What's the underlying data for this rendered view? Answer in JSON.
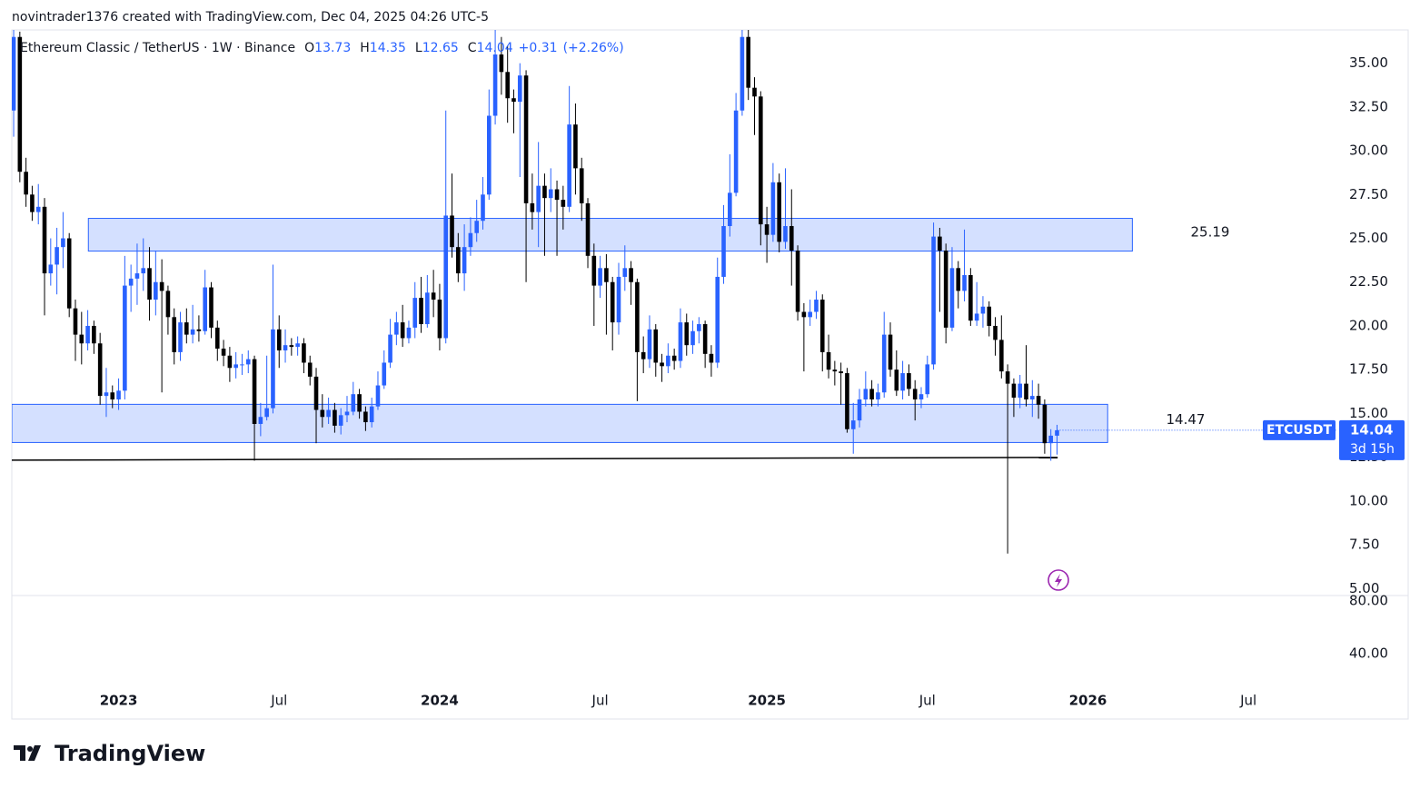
{
  "header": {
    "text": "novintrader1376 created with TradingView.com, Dec 04, 2025 04:26 UTC-5"
  },
  "chart_data": {
    "type": "candlestick",
    "title": "Ethereum Classic / TetherUS · 1W · Binance",
    "legend_labels": [
      "O",
      "H",
      "L",
      "C"
    ],
    "change": {
      "value": 0.31,
      "label": "+0.31"
    },
    "change_percent": {
      "value": 2.26,
      "label": "(+2.26%)"
    },
    "countdown": "3d 15h",
    "x": [
      0,
      1,
      2,
      3,
      4,
      5,
      6,
      7,
      8,
      9,
      10,
      11,
      12,
      13,
      14,
      15,
      16,
      17,
      18,
      19,
      20,
      21,
      22,
      23,
      24,
      25,
      26,
      27,
      28,
      29,
      30,
      31,
      32,
      33,
      34,
      35,
      36,
      37,
      38,
      39,
      40,
      41,
      42,
      43,
      44,
      45,
      46,
      47,
      48,
      49,
      50,
      51,
      52,
      53,
      54,
      55,
      56,
      57,
      58,
      59,
      60,
      61,
      62,
      63,
      64,
      65,
      66,
      67,
      68,
      69,
      70,
      71,
      72,
      73,
      74,
      75,
      76,
      77,
      78,
      79,
      80,
      81,
      82,
      83,
      84,
      85,
      86,
      87,
      88,
      89,
      90,
      91,
      92,
      93,
      94,
      95,
      96,
      97,
      98,
      99,
      100,
      101,
      102,
      103,
      104,
      105,
      106,
      107,
      108,
      109,
      110,
      111,
      112,
      113,
      114,
      115,
      116,
      117,
      118,
      119,
      120,
      121,
      122,
      123,
      124,
      125,
      126,
      127,
      128,
      129,
      130,
      131,
      132,
      133,
      134,
      135,
      136,
      137,
      138,
      139,
      140,
      141,
      142,
      143,
      144,
      145,
      146,
      147,
      148,
      149,
      150,
      151,
      152,
      153,
      154,
      155,
      156,
      157,
      158,
      159,
      160,
      161,
      162,
      163,
      164,
      165,
      166,
      167,
      168,
      169
    ],
    "series": [
      {
        "name": "ETCUSDT",
        "up_color": "#2962ff",
        "down_color": "#000000",
        "open": [
          32.3,
          36.5,
          28.8,
          27.5,
          26.5,
          26.8,
          23,
          23.5,
          24.5,
          25,
          21,
          19.5,
          19,
          20,
          19,
          16,
          16.2,
          15.8,
          16.3,
          22.3,
          22.7,
          23,
          23.3,
          21.5,
          22.5,
          22,
          20.5,
          18.5,
          20.2,
          19.5,
          19.8,
          19.7,
          22.2,
          19.9,
          18.7,
          18.3,
          17.6,
          17.8,
          17.8,
          18.1,
          14.4,
          14.8,
          15.3,
          19.8,
          18.6,
          18.9,
          18.8,
          19,
          17.9,
          17.1,
          15.2,
          14.8,
          15.2,
          14.3,
          14.9,
          15.1,
          16.1,
          15.1,
          14.5,
          15.4,
          16.6,
          17.9,
          19.5,
          20.2,
          19.3,
          19.9,
          21.6,
          20.1,
          21.9,
          21.5,
          19.3,
          26.3,
          24.5,
          23,
          24.5,
          25.3,
          26,
          27.5,
          32,
          35.5,
          34.5,
          33,
          32.8,
          34.3,
          27,
          26.5,
          28,
          27.3,
          27.8,
          27.2,
          26.8,
          31.5,
          29,
          27,
          24,
          22.3,
          23.3,
          22.5,
          20.2,
          22.8,
          23.3,
          22.5,
          18.5,
          18.1,
          19.8,
          17.9,
          17.7,
          18.3,
          18,
          20.2,
          18.9,
          19.7,
          20.1,
          18.4,
          17.9,
          22.8,
          25.7,
          27.6,
          32.3,
          36.5,
          33.6,
          33.1,
          25.8,
          25.2,
          28.2,
          24.8,
          25.7,
          24.3,
          20.8,
          20.5,
          20.8,
          21.5,
          18.5,
          17.5,
          17.4,
          17.3,
          14.1,
          14.6,
          15.8,
          16.4,
          15.8,
          16.2,
          19.5,
          17.5,
          16.3,
          17.3,
          16.4,
          15.8,
          16.1,
          17.8,
          25.1,
          24.3,
          19.9,
          23.3,
          22,
          22.9,
          20.3,
          20.7,
          21.1,
          20,
          19.2,
          17.4,
          16.7,
          15.9,
          16.7,
          15.8,
          16,
          15.5,
          13.3,
          13.73
        ],
        "high": [
          37.5,
          36.8,
          29.6,
          28,
          28.1,
          27.3,
          25,
          25.6,
          26.5,
          25.3,
          21.5,
          20.8,
          20.9,
          20.3,
          19.6,
          17.6,
          16.6,
          17,
          24,
          23.5,
          24.7,
          25,
          24.5,
          24.3,
          23.8,
          22.3,
          21,
          20.8,
          21,
          21.2,
          20.6,
          23.2,
          22.5,
          20.3,
          19.2,
          18.8,
          18.5,
          18.4,
          18.6,
          18.3,
          15.6,
          18.3,
          23.5,
          20.6,
          19.8,
          19.3,
          19.4,
          19.3,
          18.3,
          17.6,
          16.1,
          15.9,
          15.6,
          15.3,
          16,
          16.8,
          16.4,
          15.4,
          15.9,
          17.4,
          18.6,
          20.4,
          20.8,
          21.2,
          20.3,
          22.5,
          22.8,
          22.9,
          23.2,
          22.4,
          32.3,
          28.7,
          25.3,
          25.8,
          26.2,
          27.2,
          28.5,
          33.5,
          37.2,
          36.5,
          36,
          33.5,
          35,
          34.6,
          28.7,
          30.5,
          28.7,
          29,
          28.3,
          28,
          33.7,
          32.7,
          29.6,
          27.3,
          24.7,
          24,
          24.1,
          22.8,
          23.6,
          24.6,
          23.7,
          22.7,
          19.4,
          20.6,
          20.1,
          18.4,
          19,
          18.7,
          21,
          20.7,
          20.3,
          20.5,
          20.3,
          18.9,
          23.9,
          26.9,
          29.8,
          33.3,
          37.3,
          37,
          34.2,
          33.4,
          26.8,
          29.3,
          28.7,
          29,
          27.8,
          24.6,
          21.3,
          21.5,
          22,
          21.8,
          19.5,
          18,
          17.9,
          17.6,
          15.6,
          16.4,
          17.4,
          16.9,
          16.7,
          20.8,
          20.2,
          18.6,
          18,
          17.8,
          16.9,
          16.5,
          18.3,
          25.9,
          25.6,
          24.7,
          24.5,
          23.7,
          25.5,
          23.3,
          22.5,
          21.7,
          21.4,
          20.5,
          20.6,
          17.8,
          17,
          17.2,
          18.9,
          16.9,
          16.7,
          15.8,
          14.1,
          14.35
        ],
        "low": [
          30.8,
          28.2,
          26.8,
          26,
          25.8,
          20.6,
          22.3,
          21.8,
          23.3,
          20.5,
          18,
          17.8,
          18.6,
          18.4,
          15.5,
          14.8,
          15.3,
          15.2,
          15.8,
          20.8,
          21.2,
          22,
          20.3,
          20.6,
          16.2,
          19.5,
          17.8,
          18,
          19,
          19,
          19.1,
          19.5,
          19.3,
          18,
          17.7,
          16.8,
          17,
          17.2,
          17.3,
          12.3,
          13.7,
          14.6,
          15,
          17.6,
          17.9,
          18.3,
          18.3,
          17.3,
          16.6,
          13.3,
          14.2,
          14.4,
          13.9,
          13.8,
          14.5,
          14.9,
          14.7,
          14,
          14.2,
          15.2,
          16.4,
          17.6,
          18.9,
          18.8,
          19,
          19.3,
          19.6,
          19.9,
          20.5,
          18.6,
          19,
          23.9,
          22.5,
          22,
          24,
          24.8,
          25.5,
          27.2,
          31.5,
          33.2,
          31.6,
          31,
          28.5,
          22.5,
          25.5,
          24.5,
          24,
          26.5,
          24,
          25.5,
          26.5,
          27.5,
          26,
          23.3,
          20,
          21.6,
          19.5,
          18.6,
          19.5,
          22,
          21.2,
          15.7,
          17.3,
          17.6,
          17.1,
          16.8,
          17.3,
          17.5,
          17.6,
          18.3,
          18.4,
          19,
          17.6,
          17.1,
          17.6,
          22.4,
          25.1,
          27.4,
          32,
          32.9,
          30.9,
          24.6,
          23.6,
          24.8,
          24.2,
          24.4,
          22.3,
          20.3,
          17.4,
          20,
          20.4,
          17.4,
          17,
          16.6,
          15.5,
          13.9,
          12.7,
          14.2,
          15.4,
          15.4,
          15.4,
          15.9,
          17.1,
          16,
          15.8,
          16,
          14.6,
          15.3,
          15.9,
          17.5,
          20.8,
          19,
          19.7,
          21,
          21.4,
          20,
          20,
          19.9,
          19.4,
          18.3,
          17,
          7.0,
          14.8,
          15.3,
          15.4,
          14.8,
          14.7,
          12.7,
          12.3,
          12.65
        ],
        "close": [
          36.5,
          28.8,
          27.5,
          26.5,
          26.8,
          23,
          23.5,
          24.5,
          25,
          21,
          19.5,
          19,
          20,
          19,
          16,
          16.2,
          15.8,
          16.3,
          22.3,
          22.7,
          23,
          23.3,
          21.5,
          22.5,
          22,
          20.5,
          18.5,
          20.2,
          19.5,
          19.8,
          19.7,
          22.2,
          19.9,
          18.7,
          18.3,
          17.6,
          17.8,
          17.8,
          18.1,
          14.4,
          14.8,
          15.3,
          19.8,
          18.6,
          18.9,
          18.8,
          19,
          17.9,
          17.1,
          15.2,
          14.8,
          15.2,
          14.3,
          14.9,
          15.1,
          16.1,
          15.1,
          14.5,
          15.4,
          16.6,
          17.9,
          19.5,
          20.2,
          19.3,
          19.9,
          21.6,
          20.1,
          21.9,
          21.5,
          19.3,
          26.3,
          24.5,
          23,
          24.5,
          25.3,
          26,
          27.5,
          32,
          35.5,
          34.5,
          33,
          32.8,
          34.3,
          27,
          26.5,
          28,
          27.3,
          27.8,
          27.2,
          26.8,
          31.5,
          29,
          27,
          24,
          22.3,
          23.3,
          22.5,
          20.2,
          22.8,
          23.3,
          22.5,
          18.5,
          18.1,
          19.8,
          17.9,
          17.7,
          18.3,
          18,
          20.2,
          18.9,
          19.7,
          20.1,
          18.4,
          17.9,
          22.8,
          25.7,
          27.6,
          32.3,
          36.5,
          33.6,
          33.1,
          25.8,
          25.2,
          28.2,
          24.8,
          25.7,
          24.3,
          20.8,
          20.5,
          20.8,
          21.5,
          18.5,
          17.5,
          17.4,
          17.3,
          14.1,
          14.6,
          15.8,
          16.4,
          15.8,
          16.2,
          19.5,
          17.5,
          16.3,
          17.3,
          16.4,
          15.8,
          16.1,
          17.8,
          25.1,
          24.3,
          19.9,
          23.3,
          22,
          22.9,
          20.3,
          20.7,
          21.1,
          20,
          19.2,
          17.4,
          16.7,
          15.9,
          16.7,
          15.8,
          16,
          15.5,
          13.3,
          13.73,
          14.04
        ]
      }
    ],
    "zones": [
      {
        "x": [
          12.1,
          181.2
        ],
        "y": [
          24.27,
          26.14
        ],
        "color": "#2962ff"
      },
      {
        "x": [
          -0.3,
          177.2
        ],
        "y": [
          13.34,
          15.52
        ],
        "color": "#2962ff"
      }
    ],
    "support_line": {
      "x": [
        -0.3,
        169.1
      ],
      "y": [
        12.33,
        12.49
      ],
      "color": "#000000"
    },
    "annotations": [
      25.19,
      14.47
    ],
    "xlim": [
      -0.3,
      214.4
    ],
    "xticks": [
      {
        "value": 17,
        "label": "2023"
      },
      {
        "value": 43,
        "label": "Jul"
      },
      {
        "value": 69,
        "label": "2024"
      },
      {
        "value": 95,
        "label": "Jul"
      },
      {
        "value": 122,
        "label": "2025"
      },
      {
        "value": 148,
        "label": "Jul"
      },
      {
        "value": 174,
        "label": "2026"
      },
      {
        "value": 200,
        "label": "Jul"
      }
    ],
    "ylim": [
      4.6,
      36.9
    ],
    "yticks": [
      {
        "value": 5,
        "label": "5.00"
      },
      {
        "value": 7.5,
        "label": "7.50"
      },
      {
        "value": 10,
        "label": "10.00"
      },
      {
        "value": 12.5,
        "label": "12.50"
      },
      {
        "value": 15,
        "label": "15.00"
      },
      {
        "value": 17.5,
        "label": "17.50"
      },
      {
        "value": 20,
        "label": "20.00"
      },
      {
        "value": 22.5,
        "label": "22.50"
      },
      {
        "value": 25,
        "label": "25.00"
      },
      {
        "value": 27.5,
        "label": "27.50"
      },
      {
        "value": 30,
        "label": "30.00"
      },
      {
        "value": 32.5,
        "label": "32.50"
      },
      {
        "value": 35,
        "label": "35.00"
      }
    ],
    "lower_pane": {
      "ylim": [
        17.9,
        84.1
      ],
      "yticks": [
        {
          "value": 40,
          "label": "40.00"
        },
        {
          "value": 80,
          "label": "80.00"
        }
      ]
    }
  },
  "footer": {
    "brand": "TradingView"
  }
}
